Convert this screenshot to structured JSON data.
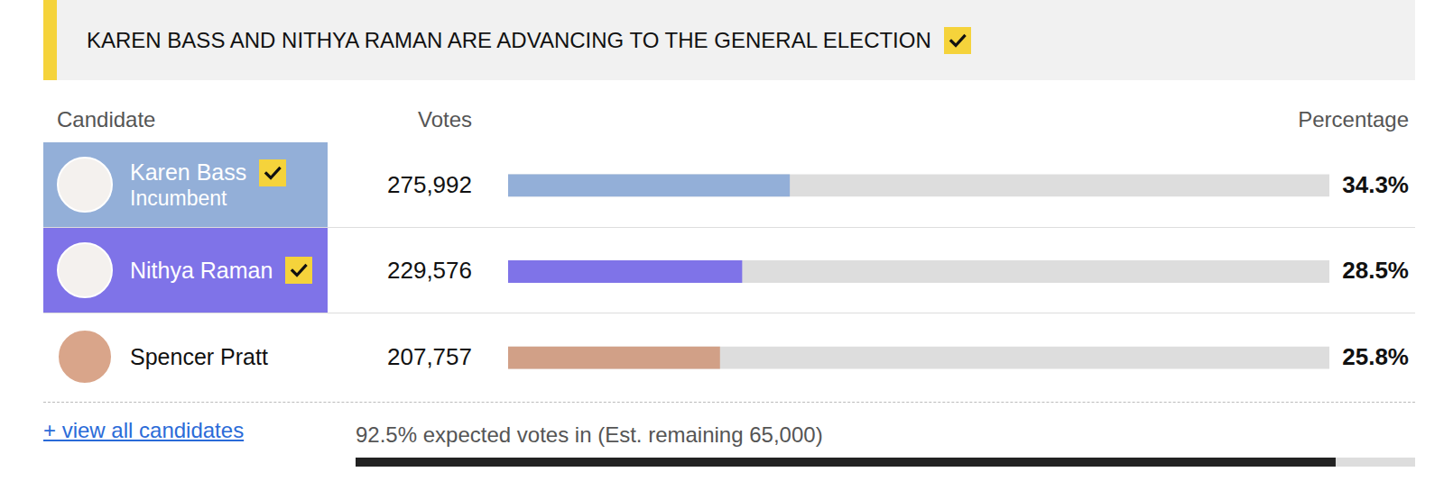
{
  "header": {
    "title": "KAREN BASS AND NITHYA RAMAN ARE ADVANCING TO THE GENERAL ELECTION",
    "checked": true
  },
  "columns": [
    "Candidate",
    "Votes",
    "Percentage"
  ],
  "chart_data": {
    "type": "bar",
    "orientation": "horizontal",
    "categories": [
      "Karen Bass",
      "Nithya Raman",
      "Spencer Pratt"
    ],
    "notes": [
      "Incumbent",
      null,
      null
    ],
    "advancing": [
      true,
      true,
      false
    ],
    "votes": [
      "275,992",
      "229,576",
      "207,757"
    ],
    "values": [
      34.3,
      28.5,
      25.8
    ],
    "value_labels": [
      "34.3%",
      "28.5%",
      "25.8%"
    ],
    "colors": [
      "#93afd8",
      "#7f73e8",
      "#d1a087"
    ],
    "xlim": [
      0,
      100
    ],
    "tick_labels": false,
    "data_labels": true
  },
  "footer": {
    "link": "+ view all candidates",
    "progress": {
      "type": "bar",
      "orientation": "horizontal",
      "label": "92.5% expected votes in (Est. remaining 65,000)",
      "values": [
        92.5
      ],
      "xlim": [
        0,
        100
      ],
      "color": "#222222",
      "tick_labels": false
    }
  }
}
